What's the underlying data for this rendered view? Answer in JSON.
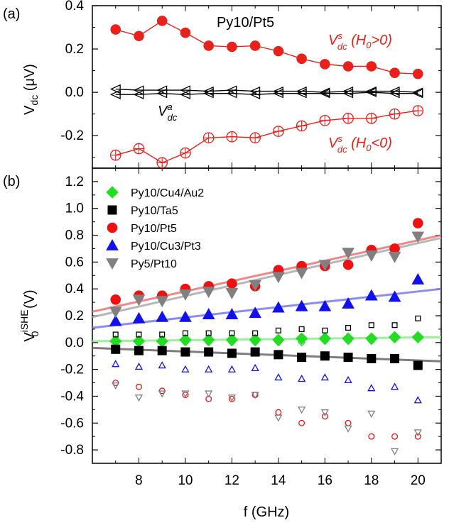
{
  "chart_data": [
    {
      "panel": "(a)",
      "type": "line",
      "xlabel": "",
      "ylabel": "V_dc (μV)",
      "ylim": [
        -0.35,
        0.4
      ],
      "yticks": [
        "0.4",
        "0.2",
        "0.0",
        "-0.2"
      ],
      "sample_label": "Py10/Pt5",
      "x": [
        7,
        8,
        9,
        10,
        11,
        12,
        13,
        14,
        15,
        16,
        17,
        18,
        19,
        20
      ],
      "series": [
        {
          "name": "V_dc^s (H_0>0)",
          "color": "#e8211c",
          "marker": "filled-circle",
          "values": [
            0.29,
            0.26,
            0.33,
            0.275,
            0.215,
            0.21,
            0.215,
            0.19,
            0.155,
            0.13,
            0.12,
            0.12,
            0.09,
            0.085
          ]
        },
        {
          "name": "V_dc^s (H_0<0)",
          "color": "#e8211c",
          "marker": "open-crossed-circle",
          "values": [
            -0.29,
            -0.26,
            -0.325,
            -0.28,
            -0.21,
            -0.205,
            -0.21,
            -0.18,
            -0.155,
            -0.13,
            -0.12,
            -0.12,
            -0.1,
            -0.085
          ]
        },
        {
          "name": "V_dc^a (upper)",
          "color": "#000000",
          "marker": "open-triangle-left",
          "values": [
            0.015,
            0.01,
            0.01,
            0.01,
            0.005,
            0.01,
            0.005,
            0.005,
            0.005,
            0.0,
            0.005,
            0.005,
            0.005,
            0.0
          ]
        },
        {
          "name": "V_dc^a (lower)",
          "color": "#000000",
          "marker": "open-triangle-left",
          "values": [
            -0.01,
            -0.01,
            -0.005,
            -0.01,
            -0.005,
            -0.005,
            -0.01,
            -0.005,
            -0.005,
            -0.005,
            -0.005,
            0.0,
            -0.005,
            -0.005
          ]
        }
      ],
      "annotations": {
        "sample": "Py10/Pt5",
        "vs_pos_main": "V",
        "vs_pos_sup": "s",
        "vs_pos_sub": "dc",
        "vs_pos_tail": " (H",
        "vs_pos_sub2": "0",
        "vs_pos_end": ">0)",
        "vs_neg_main": "V",
        "vs_neg_sup": "s",
        "vs_neg_sub": "dc",
        "vs_neg_tail": " (H",
        "vs_neg_sub2": "0",
        "vs_neg_end": "<0)",
        "va_main": "V",
        "va_sup": "a",
        "va_sub": "dc"
      }
    },
    {
      "panel": "(b)",
      "type": "scatter",
      "xlabel": "f (GHz)",
      "ylabel": "V_0^iSHE (V)",
      "xlim": [
        6,
        21
      ],
      "ylim": [
        -0.9,
        1.3
      ],
      "xticks": [
        "8",
        "10",
        "12",
        "14",
        "16",
        "18",
        "20"
      ],
      "yticks": [
        "1.2",
        "1.0",
        "0.8",
        "0.6",
        "0.4",
        "0.2",
        "0.0",
        "-0.2",
        "-0.4",
        "-0.6",
        "-0.8"
      ],
      "x": [
        7,
        8,
        9,
        10,
        11,
        12,
        13,
        14,
        15,
        16,
        17,
        18,
        19,
        20
      ],
      "legend": [
        {
          "label": "Py10/Cu4/Au2",
          "color": "#22dd22",
          "marker": "diamond"
        },
        {
          "label": "Py10/Ta5",
          "color": "#000000",
          "marker": "square"
        },
        {
          "label": "Py10/Pt5",
          "color": "#ee1111",
          "marker": "circle"
        },
        {
          "label": "Py10/Cu3/Pt3",
          "color": "#1111ee",
          "marker": "triangle-up"
        },
        {
          "label": "Py5/Pt10",
          "color": "#808080",
          "marker": "triangle-down"
        }
      ],
      "series": [
        {
          "name": "Py10/Cu4/Au2",
          "color": "#22dd22",
          "marker": "diamond",
          "filled": [
            0.01,
            0.01,
            0.01,
            0.02,
            0.02,
            0.02,
            0.02,
            0.02,
            0.03,
            0.03,
            0.03,
            0.03,
            0.04,
            0.04
          ],
          "open": [
            0.0,
            0.0,
            0.0,
            0.0,
            0.0,
            0.0,
            0.0,
            0.0,
            0.0,
            0.01,
            0.01,
            0.01,
            0.03,
            0.04
          ]
        },
        {
          "name": "Py10/Ta5",
          "color": "#000000",
          "marker": "square",
          "filled": [
            -0.05,
            -0.06,
            -0.06,
            -0.07,
            -0.07,
            -0.08,
            -0.07,
            -0.09,
            -0.11,
            -0.1,
            -0.11,
            -0.12,
            -0.12,
            -0.17
          ],
          "open": [
            0.06,
            0.06,
            0.06,
            0.07,
            0.07,
            0.07,
            0.07,
            0.09,
            0.1,
            0.09,
            0.11,
            0.13,
            0.13,
            0.18
          ]
        },
        {
          "name": "Py10/Pt5",
          "color": "#ee1111",
          "marker": "circle",
          "filled": [
            0.32,
            0.35,
            0.35,
            0.4,
            0.42,
            0.44,
            0.42,
            0.54,
            0.57,
            0.57,
            0.58,
            0.69,
            0.7,
            0.89
          ],
          "open": [
            -0.3,
            -0.33,
            -0.36,
            -0.39,
            -0.42,
            -0.42,
            -0.39,
            -0.52,
            -0.6,
            -0.55,
            -0.6,
            -0.7,
            -0.7,
            -0.7
          ]
        },
        {
          "name": "Py10/Cu3/Pt3",
          "color": "#1111ee",
          "marker": "triangle-up",
          "filled": [
            0.16,
            0.18,
            0.19,
            0.19,
            0.21,
            0.21,
            0.22,
            0.26,
            0.27,
            0.27,
            0.29,
            0.35,
            0.34,
            0.47
          ],
          "open": [
            -0.16,
            -0.18,
            -0.17,
            -0.2,
            -0.2,
            -0.2,
            -0.19,
            -0.26,
            -0.27,
            -0.26,
            -0.28,
            -0.34,
            -0.33,
            -0.43
          ]
        },
        {
          "name": "Py5/Pt10",
          "color": "#808080",
          "marker": "triangle-down",
          "filled": [
            0.23,
            0.32,
            0.31,
            0.36,
            0.38,
            0.37,
            0.43,
            0.49,
            0.52,
            0.58,
            0.67,
            0.65,
            0.64,
            0.79
          ],
          "open": [
            -0.32,
            -0.41,
            -0.38,
            -0.38,
            -0.38,
            -0.41,
            -0.39,
            -0.56,
            -0.5,
            -0.52,
            -0.64,
            -0.53,
            -0.81,
            -0.67
          ]
        }
      ],
      "fits": [
        {
          "color": "#f07070",
          "y_at_xmin": 0.23,
          "y_at_xmax": 0.8
        },
        {
          "color": "#aaaaaa",
          "y_at_xmin": 0.19,
          "y_at_xmax": 0.78
        },
        {
          "color": "#7878f0",
          "y_at_xmin": 0.11,
          "y_at_xmax": 0.4
        },
        {
          "color": "#88ee88",
          "y_at_xmin": 0.01,
          "y_at_xmax": 0.04
        },
        {
          "color": "#666666",
          "y_at_xmin": -0.04,
          "y_at_xmax": -0.14
        }
      ]
    }
  ]
}
